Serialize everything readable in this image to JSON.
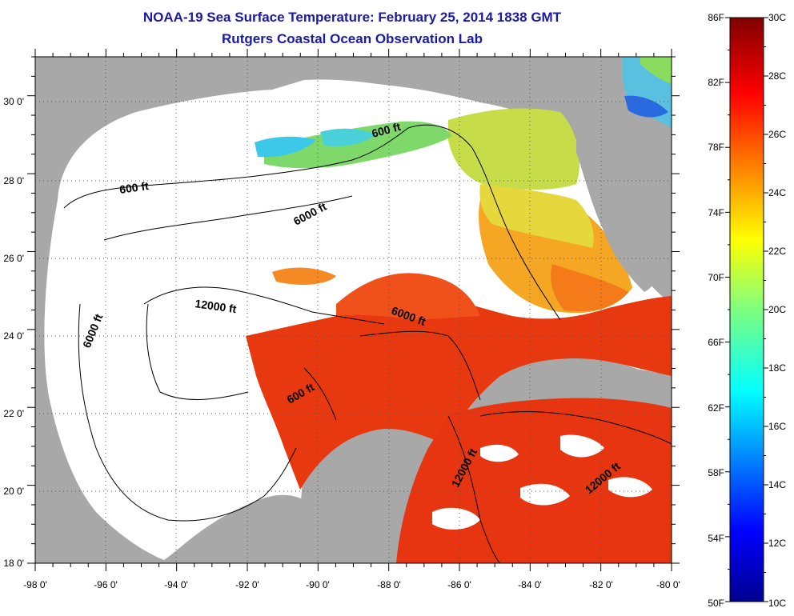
{
  "title_line1": "NOAA-19 Sea Surface Temperature:  February 25, 2014 1838 GMT",
  "title_line2": "Rutgers Coastal Ocean Observation Lab",
  "axes": {
    "lon_labels": [
      "-98 0'",
      "-96 0'",
      "-94 0'",
      "-92 0'",
      "-90 0'",
      "-88 0'",
      "-86 0'",
      "-84 0'",
      "-82 0'",
      "-80 0'"
    ],
    "lat_labels": [
      "18 0'",
      "20 0'",
      "22 0'",
      "24 0'",
      "26 0'",
      "28 0'",
      "30 0'"
    ],
    "lon_range": [
      -98,
      -80
    ],
    "lat_range": [
      18,
      31
    ],
    "grid": "dotted"
  },
  "contour_labels": [
    "600 ft",
    "600 ft",
    "6000 ft",
    "6000 ft",
    "12000 ft",
    "6000 ft",
    "600 ft",
    "12000 ft",
    "12000 ft"
  ],
  "colorbar": {
    "fahrenheit_labels": [
      "86F",
      "82F",
      "78F",
      "74F",
      "70F",
      "66F",
      "62F",
      "58F",
      "54F",
      "50F"
    ],
    "celsius_labels": [
      "30C",
      "28C",
      "26C",
      "24C",
      "22C",
      "20C",
      "18C",
      "16C",
      "14C",
      "12C",
      "10C"
    ],
    "range_c": [
      10,
      30
    ],
    "colormap": "jet"
  },
  "colors": {
    "land": "#a8a8a8",
    "cloud": "#ffffff",
    "title": "#1a1aa6",
    "warm_sst": "#e83a10",
    "mid_sst": "#f5a623",
    "cool_sst": "#c8e04a",
    "cold_sst": "#3ac8e8"
  }
}
